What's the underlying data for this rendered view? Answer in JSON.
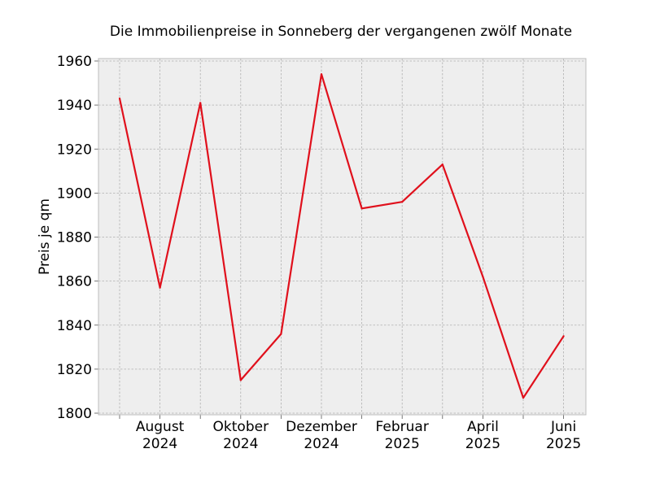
{
  "chart_data": {
    "type": "line",
    "title": "Die Immobilienpreise in Sonneberg der vergangenen zwölf Monate",
    "xlabel": "",
    "ylabel": "Preis je qm",
    "x": [
      "2024-07",
      "2024-08",
      "2024-09",
      "2024-10",
      "2024-11",
      "2024-12",
      "2025-01",
      "2025-02",
      "2025-03",
      "2025-04",
      "2025-05",
      "2025-06"
    ],
    "series": [
      {
        "values": [
          1943,
          1857,
          1941,
          1815,
          1836,
          1954,
          1893,
          1896,
          1913,
          1862,
          1807,
          1835
        ]
      }
    ],
    "ylim": [
      1800,
      1960
    ],
    "yticks": [
      1800,
      1820,
      1840,
      1860,
      1880,
      1900,
      1920,
      1940,
      1960
    ],
    "xticks": [
      {
        "x": "2024-08",
        "label": [
          "August",
          "2024"
        ]
      },
      {
        "x": "2024-10",
        "label": [
          "Oktober",
          "2024"
        ]
      },
      {
        "x": "2024-12",
        "label": [
          "Dezember",
          "2024"
        ]
      },
      {
        "x": "2025-02",
        "label": [
          "Februar",
          "2025"
        ]
      },
      {
        "x": "2025-04",
        "label": [
          "April",
          "2025"
        ]
      },
      {
        "x": "2025-06",
        "label": [
          "Juni",
          "2025"
        ]
      }
    ],
    "line_color": "#e0101c",
    "background_color": "#eeeeee",
    "grid": true
  }
}
